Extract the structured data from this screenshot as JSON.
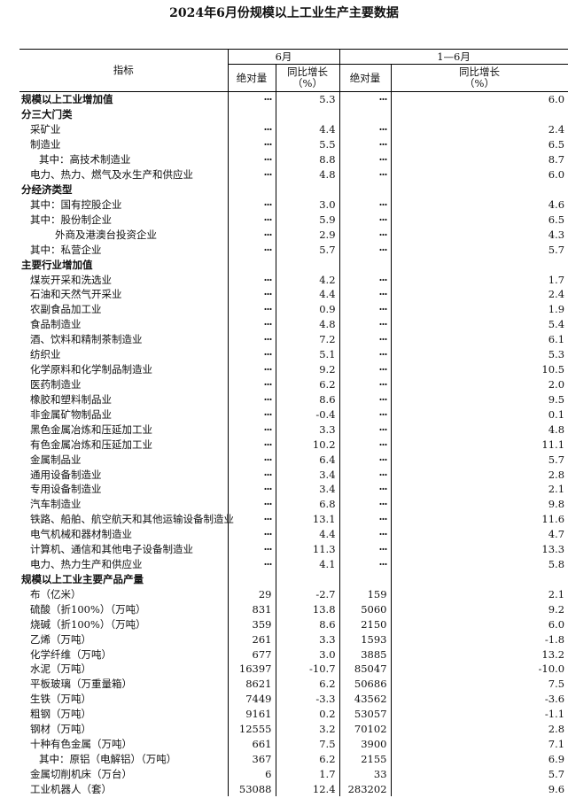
{
  "title": "2024年6月份规模以上工业生产主要数据",
  "header": {
    "indicator": "指标",
    "period1": "6月",
    "period2": "1—6月",
    "abs": "绝对量",
    "yoy_line1": "同比增长",
    "yoy_line2": "（%）"
  },
  "rows": [
    {
      "label": "规模以上工业增加值",
      "level": 0,
      "bold": true,
      "abs6": "···",
      "yoy6": "5.3",
      "abs16": "···",
      "yoy16": "6.0"
    },
    {
      "label": "分三大门类",
      "level": 0,
      "bold": true,
      "abs6": "",
      "yoy6": "",
      "abs16": "",
      "yoy16": ""
    },
    {
      "label": "采矿业",
      "level": 1,
      "abs6": "···",
      "yoy6": "4.4",
      "abs16": "···",
      "yoy16": "2.4"
    },
    {
      "label": "制造业",
      "level": 1,
      "abs6": "···",
      "yoy6": "5.5",
      "abs16": "···",
      "yoy16": "6.5"
    },
    {
      "label": "其中：高技术制造业",
      "level": 2,
      "abs6": "···",
      "yoy6": "8.8",
      "abs16": "···",
      "yoy16": "8.7"
    },
    {
      "label": "电力、热力、燃气及水生产和供应业",
      "level": 1,
      "abs6": "···",
      "yoy6": "4.8",
      "abs16": "···",
      "yoy16": "6.0"
    },
    {
      "label": "分经济类型",
      "level": 0,
      "bold": true,
      "abs6": "",
      "yoy6": "",
      "abs16": "",
      "yoy16": ""
    },
    {
      "label": "其中：国有控股企业",
      "level": 1,
      "abs6": "···",
      "yoy6": "3.0",
      "abs16": "···",
      "yoy16": "4.6"
    },
    {
      "label": "其中：股份制企业",
      "level": 1,
      "abs6": "···",
      "yoy6": "5.9",
      "abs16": "···",
      "yoy16": "6.5"
    },
    {
      "label": "外商及港澳台投资企业",
      "level": 3,
      "abs6": "···",
      "yoy6": "2.9",
      "abs16": "···",
      "yoy16": "4.3"
    },
    {
      "label": "其中：私营企业",
      "level": 1,
      "abs6": "···",
      "yoy6": "5.7",
      "abs16": "···",
      "yoy16": "5.7"
    },
    {
      "label": "主要行业增加值",
      "level": 0,
      "bold": true,
      "abs6": "",
      "yoy6": "",
      "abs16": "",
      "yoy16": ""
    },
    {
      "label": "煤炭开采和洗选业",
      "level": 1,
      "abs6": "···",
      "yoy6": "4.2",
      "abs16": "···",
      "yoy16": "1.7"
    },
    {
      "label": "石油和天然气开采业",
      "level": 1,
      "abs6": "···",
      "yoy6": "4.4",
      "abs16": "···",
      "yoy16": "2.4"
    },
    {
      "label": "农副食品加工业",
      "level": 1,
      "abs6": "···",
      "yoy6": "0.9",
      "abs16": "···",
      "yoy16": "1.9"
    },
    {
      "label": "食品制造业",
      "level": 1,
      "abs6": "···",
      "yoy6": "4.8",
      "abs16": "···",
      "yoy16": "5.4"
    },
    {
      "label": "酒、饮料和精制茶制造业",
      "level": 1,
      "abs6": "···",
      "yoy6": "7.2",
      "abs16": "···",
      "yoy16": "6.1"
    },
    {
      "label": "纺织业",
      "level": 1,
      "abs6": "···",
      "yoy6": "5.1",
      "abs16": "···",
      "yoy16": "5.3"
    },
    {
      "label": "化学原料和化学制品制造业",
      "level": 1,
      "abs6": "···",
      "yoy6": "9.2",
      "abs16": "···",
      "yoy16": "10.5"
    },
    {
      "label": "医药制造业",
      "level": 1,
      "abs6": "···",
      "yoy6": "6.2",
      "abs16": "···",
      "yoy16": "2.0"
    },
    {
      "label": "橡胶和塑料制品业",
      "level": 1,
      "abs6": "···",
      "yoy6": "8.6",
      "abs16": "···",
      "yoy16": "9.5"
    },
    {
      "label": "非金属矿物制品业",
      "level": 1,
      "abs6": "···",
      "yoy6": "-0.4",
      "abs16": "···",
      "yoy16": "0.1"
    },
    {
      "label": "黑色金属冶炼和压延加工业",
      "level": 1,
      "abs6": "···",
      "yoy6": "3.3",
      "abs16": "···",
      "yoy16": "4.8"
    },
    {
      "label": "有色金属冶炼和压延加工业",
      "level": 1,
      "abs6": "···",
      "yoy6": "10.2",
      "abs16": "···",
      "yoy16": "11.1"
    },
    {
      "label": "金属制品业",
      "level": 1,
      "abs6": "···",
      "yoy6": "6.4",
      "abs16": "···",
      "yoy16": "5.7"
    },
    {
      "label": "通用设备制造业",
      "level": 1,
      "abs6": "···",
      "yoy6": "3.4",
      "abs16": "···",
      "yoy16": "2.8"
    },
    {
      "label": "专用设备制造业",
      "level": 1,
      "abs6": "···",
      "yoy6": "3.4",
      "abs16": "···",
      "yoy16": "2.1"
    },
    {
      "label": "汽车制造业",
      "level": 1,
      "abs6": "···",
      "yoy6": "6.8",
      "abs16": "···",
      "yoy16": "9.8"
    },
    {
      "label": "铁路、船舶、航空航天和其他运输设备制造业",
      "level": 1,
      "abs6": "···",
      "yoy6": "13.1",
      "abs16": "···",
      "yoy16": "11.6"
    },
    {
      "label": "电气机械和器材制造业",
      "level": 1,
      "abs6": "···",
      "yoy6": "4.4",
      "abs16": "···",
      "yoy16": "4.7"
    },
    {
      "label": "计算机、通信和其他电子设备制造业",
      "level": 1,
      "abs6": "···",
      "yoy6": "11.3",
      "abs16": "···",
      "yoy16": "13.3"
    },
    {
      "label": "电力、热力生产和供应业",
      "level": 1,
      "abs6": "···",
      "yoy6": "4.1",
      "abs16": "···",
      "yoy16": "5.8"
    },
    {
      "label": "规模以上工业主要产品产量",
      "level": 0,
      "bold": true,
      "abs6": "",
      "yoy6": "",
      "abs16": "",
      "yoy16": ""
    },
    {
      "label": "布（亿米）",
      "level": 1,
      "abs6": "29",
      "yoy6": "-2.7",
      "abs16": "159",
      "yoy16": "2.1"
    },
    {
      "label": "硫酸（折100%）（万吨）",
      "level": 1,
      "abs6": "831",
      "yoy6": "13.8",
      "abs16": "5060",
      "yoy16": "9.2"
    },
    {
      "label": "烧碱（折100%）（万吨）",
      "level": 1,
      "abs6": "359",
      "yoy6": "8.6",
      "abs16": "2150",
      "yoy16": "6.0"
    },
    {
      "label": "乙烯（万吨）",
      "level": 1,
      "abs6": "261",
      "yoy6": "3.3",
      "abs16": "1593",
      "yoy16": "-1.8"
    },
    {
      "label": "化学纤维（万吨）",
      "level": 1,
      "abs6": "677",
      "yoy6": "3.0",
      "abs16": "3885",
      "yoy16": "13.2"
    },
    {
      "label": "水泥（万吨）",
      "level": 1,
      "abs6": "16397",
      "yoy6": "-10.7",
      "abs16": "85047",
      "yoy16": "-10.0"
    },
    {
      "label": "平板玻璃（万重量箱）",
      "level": 1,
      "abs6": "8621",
      "yoy6": "6.2",
      "abs16": "50686",
      "yoy16": "7.5"
    },
    {
      "label": "生铁（万吨）",
      "level": 1,
      "abs6": "7449",
      "yoy6": "-3.3",
      "abs16": "43562",
      "yoy16": "-3.6"
    },
    {
      "label": "粗钢（万吨）",
      "level": 1,
      "abs6": "9161",
      "yoy6": "0.2",
      "abs16": "53057",
      "yoy16": "-1.1"
    },
    {
      "label": "钢材（万吨）",
      "level": 1,
      "abs6": "12555",
      "yoy6": "3.2",
      "abs16": "70102",
      "yoy16": "2.8"
    },
    {
      "label": "十种有色金属（万吨）",
      "level": 1,
      "abs6": "661",
      "yoy6": "7.5",
      "abs16": "3900",
      "yoy16": "7.1"
    },
    {
      "label": "其中：原铝（电解铝）（万吨）",
      "level": 2,
      "abs6": "367",
      "yoy6": "6.2",
      "abs16": "2155",
      "yoy16": "6.9"
    },
    {
      "label": "金属切削机床（万台）",
      "level": 1,
      "abs6": "6",
      "yoy6": "1.7",
      "abs16": "33",
      "yoy16": "5.7"
    },
    {
      "label": "工业机器人（套）",
      "level": 1,
      "abs6": "53088",
      "yoy6": "12.4",
      "abs16": "283202",
      "yoy16": "9.6"
    }
  ]
}
